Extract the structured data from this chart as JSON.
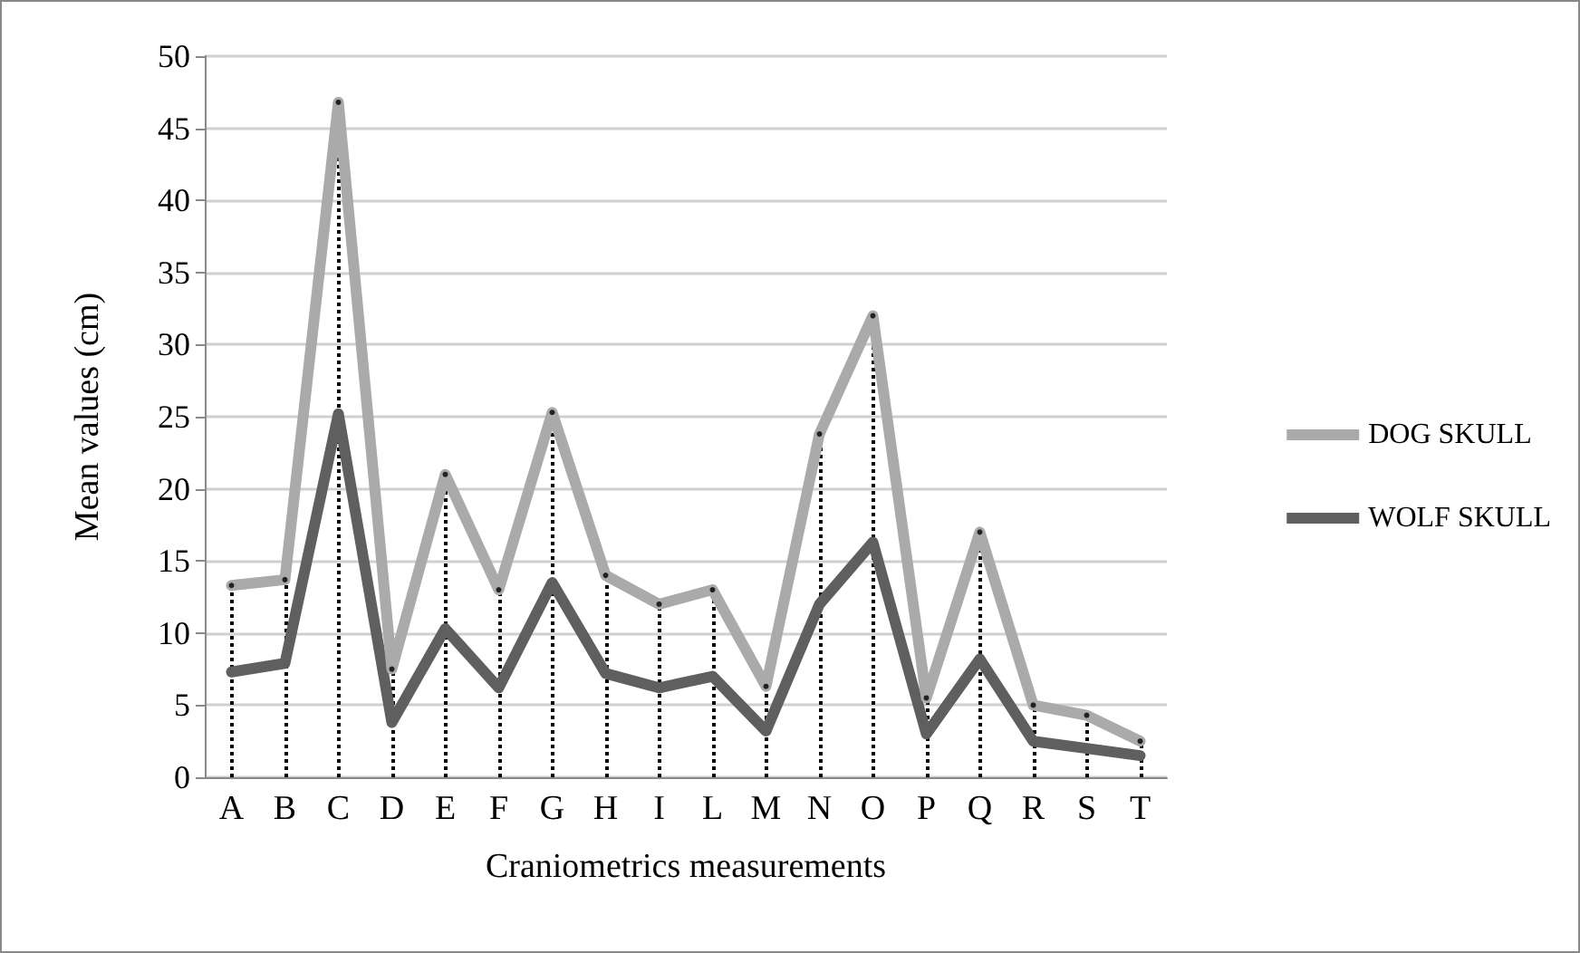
{
  "chart_data": {
    "type": "line",
    "xlabel": "Craniometrics measurements",
    "ylabel": "Mean values (cm)",
    "categories": [
      "A",
      "B",
      "C",
      "D",
      "E",
      "F",
      "G",
      "H",
      "I",
      "L",
      "M",
      "N",
      "O",
      "P",
      "Q",
      "R",
      "S",
      "T"
    ],
    "series": [
      {
        "name": "DOG SKULL",
        "color": "#aaaaaa",
        "values": [
          13.3,
          13.7,
          46.8,
          7.5,
          21,
          13,
          25.3,
          14,
          12,
          13,
          6.3,
          23.8,
          32,
          5.5,
          17,
          5,
          4.3,
          2.5
        ]
      },
      {
        "name": "WOLF SKULL",
        "color": "#5f5f5f",
        "values": [
          7.3,
          7.9,
          25.2,
          3.8,
          10.3,
          6.2,
          13.5,
          7.2,
          6.2,
          7,
          3.2,
          12,
          16.3,
          3,
          8.2,
          2.5,
          2,
          1.5
        ]
      },
      {
        "type": "lollipop",
        "color": "#000000",
        "line_style": "dotted",
        "marker": "circle",
        "values": [
          13.3,
          13.7,
          46.8,
          7.5,
          21,
          13,
          25.3,
          14,
          12,
          13,
          6.3,
          23.8,
          32,
          5.5,
          17,
          5,
          4.3,
          2.5
        ]
      }
    ],
    "ylim": [
      0,
      50
    ],
    "yticks": [
      0,
      5,
      10,
      15,
      20,
      25,
      30,
      35,
      40,
      45,
      50
    ],
    "grid": "y",
    "legend": "right",
    "marker": "none",
    "line_style": "solid"
  }
}
